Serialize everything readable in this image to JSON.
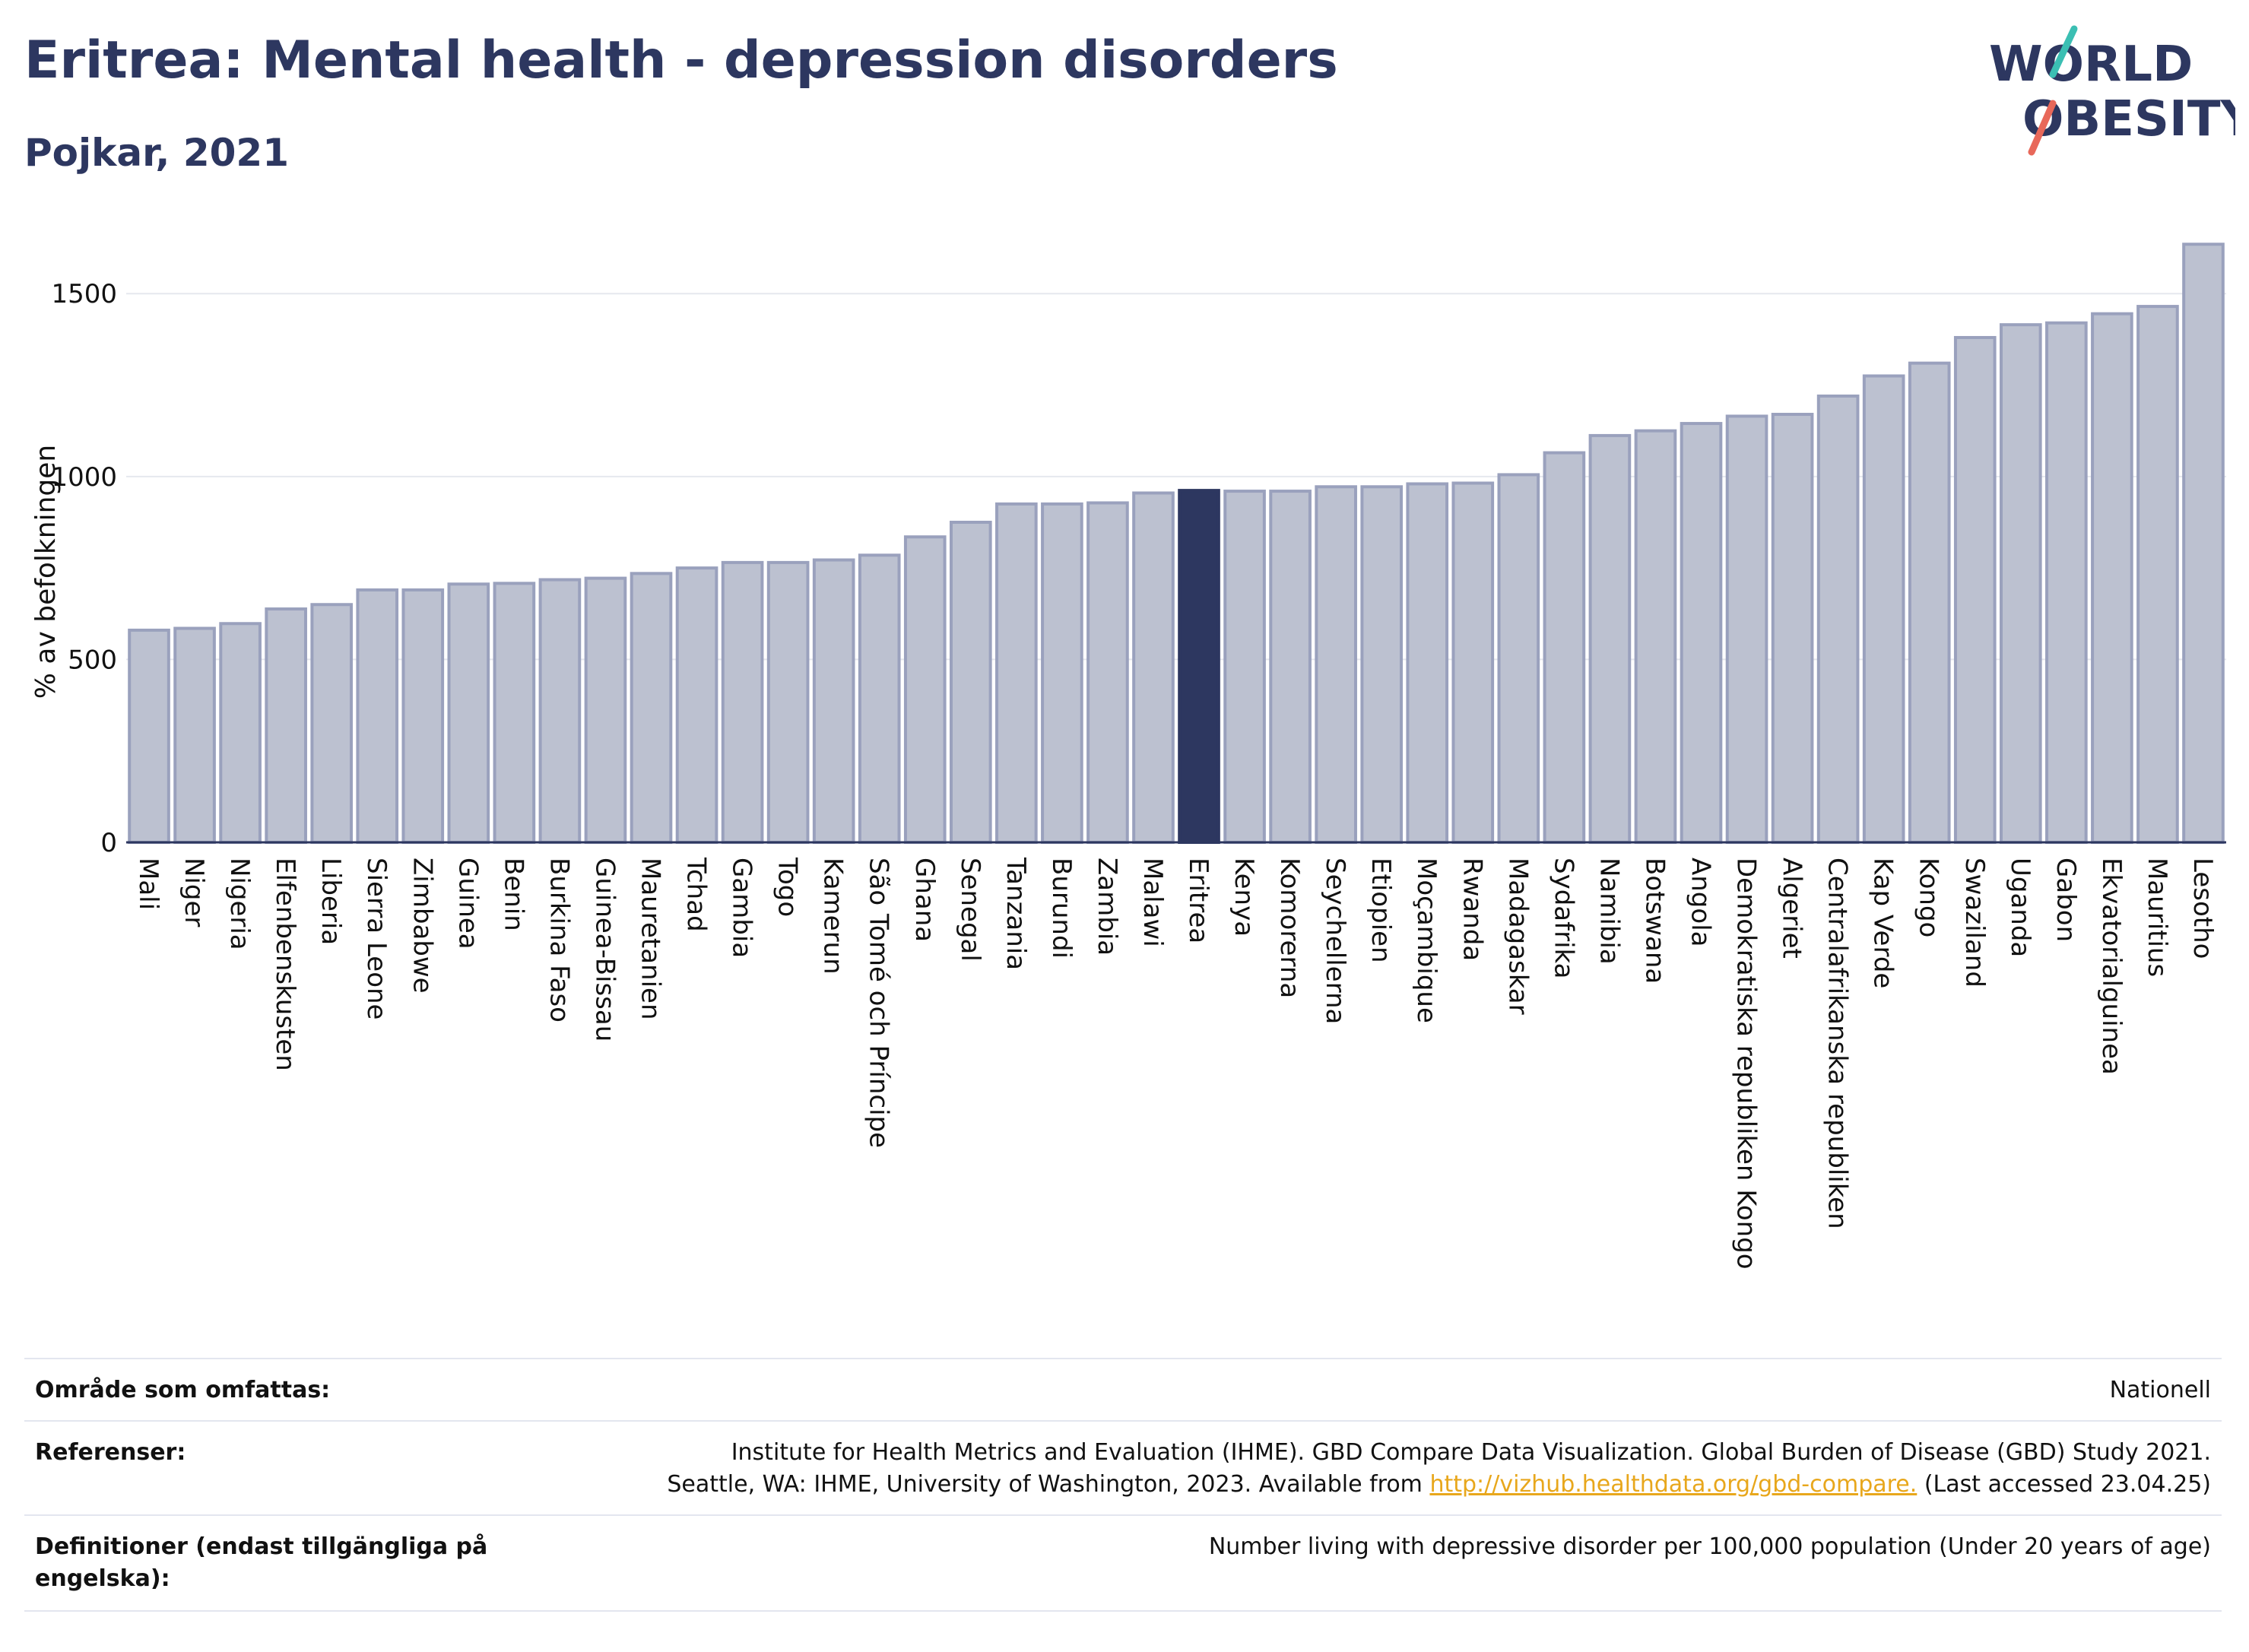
{
  "header": {
    "title": "Eritrea: Mental health - depression disorders",
    "subtitle": "Pojkar, 2021"
  },
  "logo": {
    "text_line1": "WORLD",
    "text_line2": "OBESITY",
    "colors": {
      "text": "#2d3760",
      "slash_top": "#3bbfb3",
      "slash_bottom": "#e8685a"
    }
  },
  "colors": {
    "bar_default": "#bcc1d0",
    "bar_default_stroke": "#9aa1bd",
    "bar_highlight": "#2d3760",
    "grid": "#e6e8ee",
    "axis": "#2d3760"
  },
  "chart_data": {
    "type": "bar",
    "ylabel": "% av befolkningen",
    "ylim": [
      0,
      1700
    ],
    "yticks": [
      0,
      500,
      1000,
      1500
    ],
    "grid": true,
    "highlight": "Eritrea",
    "categories": [
      "Mali",
      "Niger",
      "Nigeria",
      "Elfenbenskusten",
      "Liberia",
      "Sierra Leone",
      "Zimbabwe",
      "Guinea",
      "Benin",
      "Burkina Faso",
      "Guinea-Bissau",
      "Mauretanien",
      "Tchad",
      "Gambia",
      "Togo",
      "Kamerun",
      "São Tomé och Príncipe",
      "Ghana",
      "Senegal",
      "Tanzania",
      "Burundi",
      "Zambia",
      "Malawi",
      "Eritrea",
      "Kenya",
      "Komorerna",
      "Seychellerna",
      "Etiopien",
      "Moçambique",
      "Rwanda",
      "Madagaskar",
      "Sydafrika",
      "Namibia",
      "Botswana",
      "Angola",
      "Demokratiska republiken Kongo",
      "Algeriet",
      "Centralafrikanska republiken",
      "Kap Verde",
      "Kongo",
      "Swaziland",
      "Uganda",
      "Gabon",
      "Ekvatorialguinea",
      "Mauritius",
      "Lesotho"
    ],
    "values": [
      580,
      585,
      598,
      638,
      650,
      690,
      690,
      706,
      708,
      718,
      722,
      735,
      750,
      765,
      765,
      772,
      785,
      835,
      875,
      925,
      925,
      928,
      955,
      962,
      960,
      960,
      972,
      972,
      980,
      982,
      1005,
      1065,
      1112,
      1125,
      1145,
      1165,
      1170,
      1220,
      1275,
      1310,
      1380,
      1415,
      1420,
      1445,
      1465,
      1635
    ]
  },
  "meta": {
    "rows": [
      {
        "label": "Område som omfattas:",
        "value": "Nationell"
      },
      {
        "label": "Referenser:",
        "value_line1": "Institute for Health Metrics and Evaluation (IHME). GBD Compare Data Visualization. Global Burden of Disease (GBD) Study 2021.",
        "value_line2_pre": "Seattle, WA: IHME, University of Washington, 2023. Available from ",
        "value_link": "http://vizhub.healthdata.org/gbd-compare.",
        "value_line2_post": " (Last accessed 23.04.25)"
      },
      {
        "label": "Definitioner (endast tillgängliga på engelska):",
        "value": "Number living with depressive disorder per 100,000 population (Under 20 years of age)"
      }
    ]
  }
}
